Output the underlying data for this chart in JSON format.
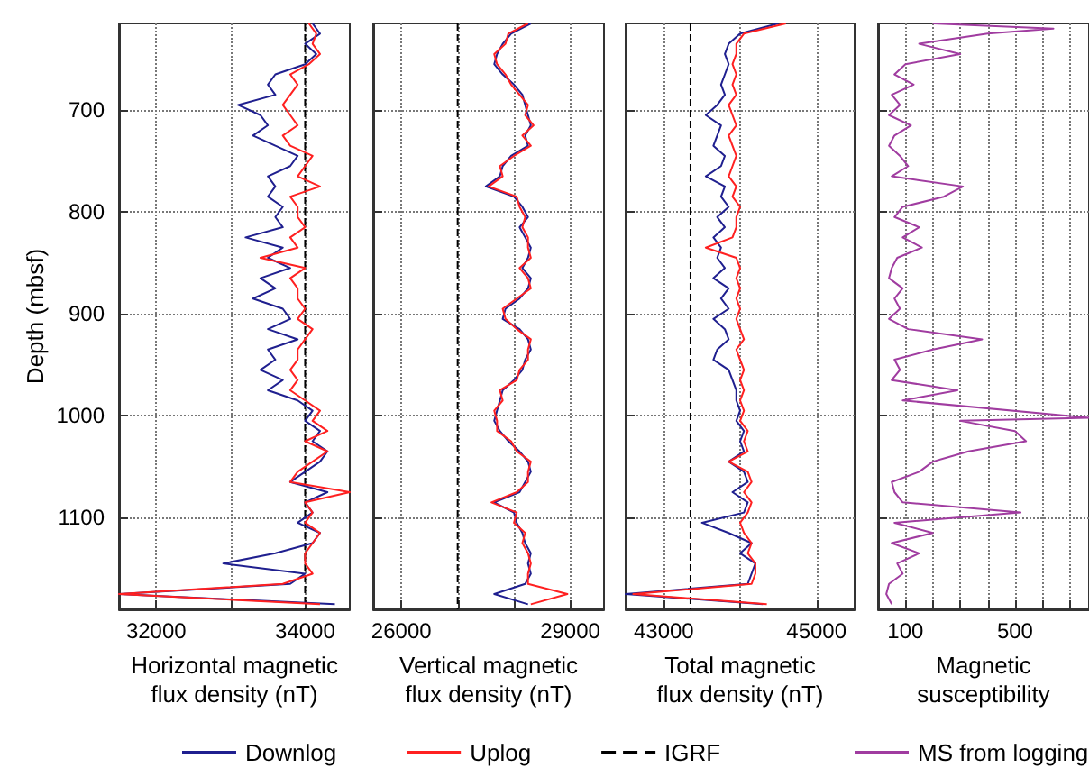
{
  "chart_data": [
    {
      "type": "line",
      "xlabel": "Horizontal magnetic\nflux density (nT)",
      "ylabel": "Depth (mbsf)",
      "xlim": [
        31500,
        34600
      ],
      "xticks": [
        32000,
        {
          "value": 33000,
          "label": null
        },
        34000
      ],
      "ylim": [
        1190,
        615
      ],
      "yticks": [
        700,
        800,
        900,
        1000,
        1100
      ],
      "grid": true,
      "marker": "none",
      "legend": "bottom",
      "series": [
        {
          "name": "Downlog",
          "color": "#1f1f8f",
          "x": [
            34100,
            34200,
            34000,
            34150,
            34000,
            33600,
            33500,
            33600,
            33100,
            33400,
            33500,
            33300,
            33600,
            33900,
            33800,
            33500,
            33600,
            33500,
            33700,
            33600,
            33700,
            33200,
            33700,
            33500,
            33800,
            33400,
            33600,
            33300,
            33700,
            33800,
            33500,
            33900,
            33500,
            33600,
            33400,
            33700,
            33500,
            33900,
            34100,
            34000,
            34200,
            34100,
            34300,
            34200,
            34000,
            33800,
            34300,
            34000,
            34100,
            33900,
            34200,
            34100,
            33600,
            32900,
            34000,
            33800,
            31500,
            34400
          ],
          "values": [
            615,
            625,
            635,
            645,
            655,
            665,
            675,
            685,
            695,
            705,
            715,
            725,
            735,
            745,
            755,
            765,
            775,
            785,
            795,
            805,
            815,
            825,
            835,
            845,
            855,
            865,
            875,
            885,
            895,
            905,
            915,
            925,
            935,
            945,
            955,
            965,
            975,
            985,
            995,
            1005,
            1015,
            1025,
            1035,
            1045,
            1055,
            1065,
            1075,
            1085,
            1095,
            1105,
            1115,
            1125,
            1135,
            1145,
            1155,
            1165,
            1175,
            1185
          ]
        },
        {
          "name": "Uplog",
          "color": "#ff2020",
          "x": [
            34050,
            34150,
            34100,
            34200,
            34050,
            33800,
            33900,
            33800,
            33700,
            33800,
            33900,
            33700,
            33800,
            34100,
            34000,
            33900,
            34200,
            33800,
            33900,
            33900,
            34000,
            33800,
            33900,
            33400,
            34000,
            33800,
            33900,
            33900,
            34000,
            33900,
            34100,
            34000,
            33900,
            33900,
            33800,
            33900,
            33800,
            34000,
            34200,
            34100,
            34300,
            34000,
            34300,
            34100,
            33900,
            33800,
            34600,
            34000,
            34100,
            34000,
            34200,
            34100,
            34000,
            34000,
            34100,
            33700,
            31500,
            34200
          ],
          "values": [
            615,
            625,
            635,
            645,
            655,
            665,
            675,
            685,
            695,
            705,
            715,
            725,
            735,
            745,
            755,
            765,
            775,
            785,
            795,
            805,
            815,
            825,
            835,
            845,
            855,
            865,
            875,
            885,
            895,
            905,
            915,
            925,
            935,
            945,
            955,
            965,
            975,
            985,
            995,
            1005,
            1015,
            1025,
            1035,
            1045,
            1055,
            1065,
            1075,
            1085,
            1095,
            1105,
            1115,
            1125,
            1135,
            1145,
            1155,
            1165,
            1175,
            1185
          ]
        },
        {
          "name": "IGRF",
          "color": "#000000",
          "line_style": "dashed",
          "x": [
            34000,
            34000
          ],
          "values": [
            615,
            1190
          ]
        }
      ]
    },
    {
      "type": "line",
      "xlabel": "Vertical magnetic\nflux density (nT)",
      "xlim": [
        25500,
        29600
      ],
      "xticks": [
        26000,
        {
          "value": 27000,
          "label": null
        },
        {
          "value": 28000,
          "label": null
        },
        29000
      ],
      "ylim": [
        1190,
        615
      ],
      "yticks": [
        700,
        800,
        900,
        1000,
        1100
      ],
      "tick_labels": "x",
      "grid": true,
      "marker": "none",
      "series": [
        {
          "color": "#1f1f8f",
          "x": [
            28300,
            27950,
            27800,
            27700,
            27650,
            27800,
            28000,
            28150,
            28200,
            28250,
            28300,
            28200,
            28250,
            27950,
            27800,
            27750,
            27500,
            28000,
            28150,
            28250,
            28100,
            28200,
            28300,
            28250,
            28150,
            28300,
            28250,
            28100,
            27850,
            27800,
            28100,
            28250,
            28300,
            28200,
            28150,
            28000,
            27800,
            27750,
            27700,
            27650,
            27750,
            27900,
            28100,
            28250,
            28300,
            28200,
            28100,
            27650,
            28000,
            28050,
            28150,
            28200,
            28300,
            28250,
            28300,
            28200,
            27650,
            28250
          ],
          "values": [
            615,
            625,
            635,
            645,
            655,
            665,
            675,
            685,
            695,
            705,
            715,
            725,
            735,
            745,
            755,
            765,
            775,
            785,
            795,
            805,
            815,
            825,
            835,
            845,
            855,
            865,
            875,
            885,
            895,
            905,
            915,
            925,
            935,
            945,
            955,
            965,
            975,
            985,
            995,
            1005,
            1015,
            1025,
            1035,
            1045,
            1055,
            1065,
            1075,
            1085,
            1095,
            1105,
            1115,
            1125,
            1135,
            1145,
            1155,
            1165,
            1175,
            1185
          ]
        },
        {
          "color": "#ff2020",
          "x": [
            28250,
            27900,
            27850,
            27650,
            27700,
            27850,
            27950,
            28100,
            28250,
            28200,
            28350,
            28150,
            28300,
            28000,
            27750,
            27800,
            27550,
            28050,
            28100,
            28200,
            28150,
            28250,
            28250,
            28300,
            28100,
            28250,
            28300,
            28050,
            27800,
            27850,
            28050,
            28300,
            28250,
            28250,
            28100,
            28050,
            27750,
            27800,
            27650,
            27700,
            27700,
            27950,
            28050,
            28300,
            28250,
            28250,
            28050,
            27600,
            28050,
            28000,
            28200,
            28150,
            28250,
            28300,
            28250,
            28250,
            28950,
            28300
          ],
          "values": [
            615,
            625,
            635,
            645,
            655,
            665,
            675,
            685,
            695,
            705,
            715,
            725,
            735,
            745,
            755,
            765,
            775,
            785,
            795,
            805,
            815,
            825,
            835,
            845,
            855,
            865,
            875,
            885,
            895,
            905,
            915,
            925,
            935,
            945,
            955,
            965,
            975,
            985,
            995,
            1005,
            1015,
            1025,
            1035,
            1045,
            1055,
            1065,
            1075,
            1085,
            1095,
            1105,
            1115,
            1125,
            1135,
            1145,
            1155,
            1165,
            1175,
            1185
          ]
        },
        {
          "color": "#000000",
          "line_style": "dashed",
          "x": [
            27000,
            27000
          ],
          "values": [
            615,
            1190
          ]
        }
      ]
    },
    {
      "type": "line",
      "xlabel": "Total magnetic\nflux density (nT)",
      "xlim": [
        42500,
        45500
      ],
      "xticks": [
        43000,
        {
          "value": 44000,
          "label": null
        },
        45000
      ],
      "ylim": [
        1190,
        615
      ],
      "yticks": [
        700,
        800,
        900,
        1000,
        1100
      ],
      "tick_labels": "x",
      "grid": true,
      "marker": "none",
      "series": [
        {
          "color": "#1f1f8f",
          "x": [
            44500,
            44000,
            43850,
            43800,
            43850,
            43800,
            43750,
            43800,
            43700,
            43550,
            43750,
            43700,
            43650,
            43800,
            43750,
            43550,
            43800,
            43750,
            43850,
            43700,
            43800,
            43650,
            43750,
            43700,
            43800,
            43650,
            43850,
            43750,
            43850,
            43650,
            43800,
            43850,
            43700,
            43650,
            43850,
            43900,
            43950,
            43950,
            44000,
            43950,
            44050,
            44000,
            44050,
            43850,
            44050,
            44100,
            43900,
            44100,
            44050,
            43500,
            43850,
            44150,
            44000,
            44200,
            44150,
            44100,
            42500,
            44300
          ],
          "values": [
            615,
            625,
            635,
            645,
            655,
            665,
            675,
            685,
            695,
            705,
            715,
            725,
            735,
            745,
            755,
            765,
            775,
            785,
            795,
            805,
            815,
            825,
            835,
            845,
            855,
            865,
            875,
            885,
            895,
            905,
            915,
            925,
            935,
            945,
            955,
            965,
            975,
            985,
            995,
            1005,
            1015,
            1025,
            1035,
            1045,
            1055,
            1065,
            1075,
            1085,
            1095,
            1105,
            1115,
            1125,
            1135,
            1145,
            1155,
            1165,
            1175,
            1185
          ]
        },
        {
          "color": "#ff2020",
          "x": [
            44600,
            44050,
            43950,
            43950,
            43900,
            43950,
            43900,
            43950,
            43850,
            43900,
            43950,
            43850,
            43900,
            43950,
            43900,
            43850,
            43950,
            43900,
            44000,
            43950,
            43950,
            43900,
            43550,
            43950,
            44000,
            43950,
            44000,
            43950,
            44000,
            43950,
            44000,
            44050,
            43950,
            44000,
            44050,
            44000,
            44050,
            44000,
            44050,
            44000,
            44100,
            44050,
            44100,
            43850,
            44100,
            44150,
            44050,
            44150,
            44100,
            44000,
            44050,
            44150,
            44100,
            44200,
            44200,
            44150,
            42600,
            44350
          ],
          "values": [
            615,
            625,
            635,
            645,
            655,
            665,
            675,
            685,
            695,
            705,
            715,
            725,
            735,
            745,
            755,
            765,
            775,
            785,
            795,
            805,
            815,
            825,
            835,
            845,
            855,
            865,
            875,
            885,
            895,
            905,
            915,
            925,
            935,
            945,
            955,
            965,
            975,
            985,
            995,
            1005,
            1015,
            1025,
            1035,
            1045,
            1055,
            1065,
            1075,
            1085,
            1095,
            1105,
            1115,
            1125,
            1135,
            1145,
            1155,
            1165,
            1175,
            1185
          ]
        },
        {
          "color": "#000000",
          "line_style": "dashed",
          "x": [
            43350,
            43350
          ],
          "values": [
            615,
            1190
          ]
        }
      ]
    },
    {
      "type": "line",
      "xlabel": "Magnetic\nsusceptibility",
      "xlim": [
        0,
        770
      ],
      "xticks": [
        100,
        {
          "value": 200,
          "label": null
        },
        {
          "value": 300,
          "label": null
        },
        {
          "value": 400,
          "label": null
        },
        500,
        {
          "value": 600,
          "label": null
        },
        {
          "value": 700,
          "label": null
        }
      ],
      "ylim": [
        1190,
        615
      ],
      "yticks": [
        700,
        800,
        900,
        1000,
        1100
      ],
      "tick_labels": "x",
      "grid": true,
      "marker": "none",
      "legend": "bottom",
      "series": [
        {
          "name": "MS from logging",
          "color": "#a03ca0",
          "x": [
            200,
            640,
            400,
            150,
            300,
            100,
            60,
            130,
            50,
            80,
            40,
            120,
            60,
            40,
            80,
            110,
            50,
            310,
            240,
            90,
            60,
            150,
            90,
            160,
            70,
            50,
            40,
            90,
            60,
            80,
            40,
            110,
            380,
            200,
            60,
            80,
            50,
            290,
            90,
            770,
            300,
            500,
            540,
            330,
            200,
            150,
            50,
            60,
            90,
            520,
            60,
            200,
            50,
            150,
            70,
            90,
            40,
            30,
            50
          ],
          "values": [
            615,
            620,
            625,
            635,
            645,
            655,
            665,
            675,
            685,
            695,
            705,
            715,
            725,
            735,
            745,
            755,
            765,
            775,
            785,
            795,
            805,
            815,
            825,
            835,
            845,
            855,
            865,
            875,
            885,
            895,
            905,
            915,
            925,
            935,
            945,
            955,
            965,
            975,
            985,
            1002,
            1005,
            1015,
            1025,
            1035,
            1045,
            1055,
            1065,
            1075,
            1085,
            1095,
            1105,
            1115,
            1125,
            1135,
            1145,
            1155,
            1165,
            1175,
            1185
          ]
        }
      ]
    }
  ]
}
